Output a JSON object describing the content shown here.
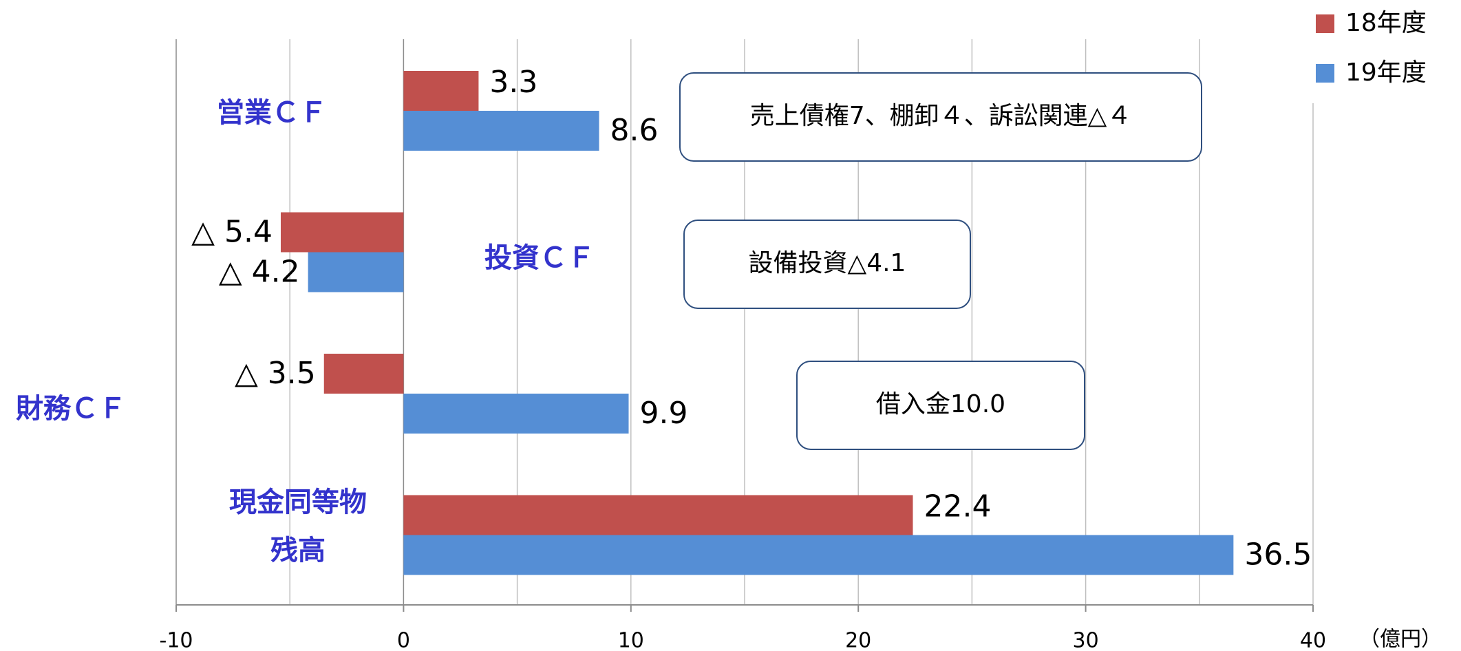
{
  "chart_data": {
    "type": "hbar",
    "categories": [
      "営業ＣＦ",
      "投資ＣＦ",
      "財務ＣＦ",
      "現金同等物\n残高"
    ],
    "series": [
      {
        "name": "18年度",
        "color": "#c0504d",
        "values": [
          3.3,
          -5.4,
          -3.5,
          22.4
        ],
        "value_labels": [
          "3.3",
          "△ 5.4",
          "△ 3.5",
          "22.4"
        ]
      },
      {
        "name": "19年度",
        "color": "#558ed5",
        "values": [
          8.6,
          -4.2,
          9.9,
          36.5
        ],
        "value_labels": [
          "8.6",
          "△ 4.2",
          "9.9",
          "36.5"
        ]
      }
    ],
    "xlim": [
      -10,
      40
    ],
    "xticks": [
      -10,
      0,
      10,
      20,
      30,
      40
    ],
    "xminor": [
      -5,
      5,
      15,
      25,
      35
    ],
    "grid": true,
    "legend": "top-right",
    "unit_label": "（億円）",
    "annotations": [
      "売上債権7、棚卸４、訴訟関連△４",
      "設備投資△4.1",
      "借入金10.0"
    ]
  }
}
